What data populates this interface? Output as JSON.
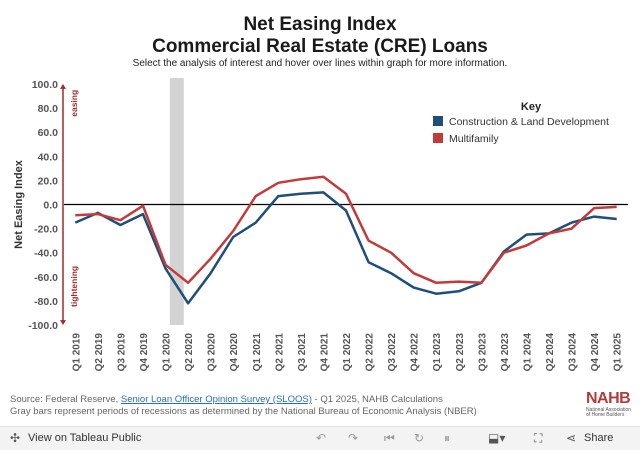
{
  "header": {
    "title_line1": "Net Easing Index",
    "title_line2": "Commercial Real Estate (CRE) Loans",
    "subtitle": "Select the analysis of interest and hover over lines within graph for more information."
  },
  "legend": {
    "title": "Key",
    "items": [
      {
        "label": "Construction & Land Development",
        "color": "#1f4e79"
      },
      {
        "label": "Multifamily",
        "color": "#c23b3b"
      }
    ]
  },
  "chart_data": {
    "type": "line",
    "ylabel": "Net Easing Index",
    "ylim": [
      -100,
      100
    ],
    "yticks": [
      "100.0",
      "80.0",
      "60.0",
      "40.0",
      "20.0",
      "0.0",
      "-20.0",
      "-40.0",
      "-60.0",
      "-80.0",
      "-100.0"
    ],
    "annotations": {
      "top": "easing",
      "bottom": "tightening"
    },
    "recession_band": {
      "from": "Q1 2020",
      "to": "Q2 2020"
    },
    "categories": [
      "Q1 2019",
      "Q2 2019",
      "Q3 2019",
      "Q4 2019",
      "Q1 2020",
      "Q2 2020",
      "Q3 2020",
      "Q4 2020",
      "Q1 2021",
      "Q2 2021",
      "Q3 2021",
      "Q4 2021",
      "Q1 2022",
      "Q2 2022",
      "Q3 2022",
      "Q4 2022",
      "Q1 2023",
      "Q2 2023",
      "Q3 2023",
      "Q4 2023",
      "Q1 2024",
      "Q2 2024",
      "Q3 2024",
      "Q4 2024",
      "Q1 2025"
    ],
    "series": [
      {
        "name": "Construction & Land Development",
        "color": "#1f4e79",
        "values": [
          -15,
          -7,
          -17,
          -8,
          -53,
          -82,
          -57,
          -27,
          -15,
          7,
          9,
          10,
          -5,
          -48,
          -57,
          -69,
          -74,
          -72,
          -65,
          -39,
          -25,
          -24,
          -15,
          -10,
          -12
        ]
      },
      {
        "name": "Multifamily",
        "color": "#c23b3b",
        "values": [
          -9,
          -8,
          -13,
          -1,
          -50,
          -65,
          -45,
          -22,
          7,
          18,
          21,
          23,
          9,
          -30,
          -40,
          -57,
          -65,
          -64,
          -65,
          -40,
          -34,
          -24,
          -20,
          -3,
          -2
        ]
      }
    ]
  },
  "source": {
    "prefix": "Source: Federal Reserve, ",
    "link_text": "Senior Loan Officer Opinion Survey (SLOOS)",
    "suffix": " - Q1 2025, NAHB Calculations",
    "note": "Gray bars represent periods of recessions as determined by the National Bureau of Economic Analysis (NBER)"
  },
  "logo": {
    "text": "NAHB",
    "line1": "National Association",
    "line2": "of Home Builders"
  },
  "toolbar": {
    "view_label": "View on Tableau Public",
    "share_label": "Share"
  }
}
